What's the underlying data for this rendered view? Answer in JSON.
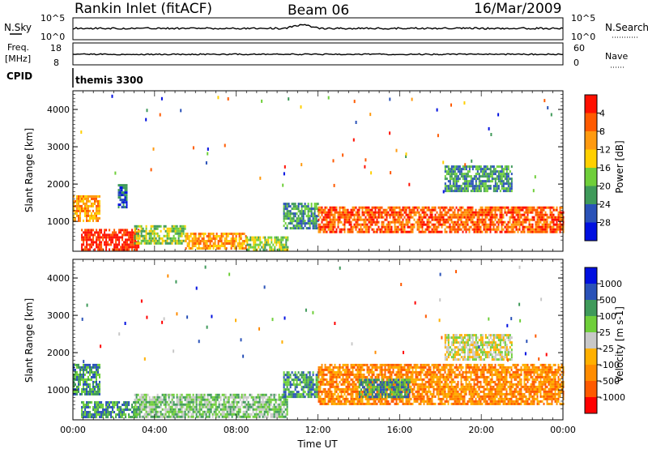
{
  "header": {
    "title": "Rankin Inlet (fitACF)",
    "beam": "Beam 06",
    "date": "16/Mar/2009"
  },
  "nsky_panel": {
    "left_label": "N.Sky",
    "left_ticks": [
      "10^5",
      "10^0"
    ],
    "right_ticks": [
      "10^5",
      "10^0"
    ],
    "right_label": "N.Search"
  },
  "freq_panel": {
    "left_label_1": "Freq.",
    "left_label_2": "[MHz]",
    "left_ticks": [
      "18",
      "8"
    ],
    "right_ticks": [
      "60",
      "0"
    ],
    "right_label": "Nave"
  },
  "cpid_panel": {
    "label": "CPID",
    "value": "themis 3300"
  },
  "colors": {
    "scale": [
      "#0010e0",
      "#2a52b8",
      "#3f9a5a",
      "#6fcf3a",
      "#ffd000",
      "#ff9a10",
      "#ff5a00",
      "#ff1000"
    ],
    "velocity_scale": [
      "#ff0000",
      "#ff5a00",
      "#ff8c00",
      "#ffb000",
      "#c8c8c8",
      "#6fcf3a",
      "#3f9a5a",
      "#2a52b8",
      "#0010e0"
    ],
    "ground_scatter": "#c8c8c8"
  },
  "chart_data": [
    {
      "type": "heatmap",
      "panel": "power",
      "ylabel": "Slant Range [km]",
      "yticks": [
        "1000",
        "2000",
        "3000",
        "4000"
      ],
      "ylim": [
        200,
        4500
      ],
      "xlim": [
        0,
        24
      ],
      "colorbar_label": "Power [dB]",
      "colorbar_ticks": [
        "4",
        "8",
        "12",
        "16",
        "20",
        "24",
        "28"
      ],
      "regions": [
        {
          "x": [
            0,
            1.3
          ],
          "y": [
            1000,
            1700
          ],
          "level": 5
        },
        {
          "x": [
            0.4,
            3.2
          ],
          "y": [
            250,
            800
          ],
          "level": 7
        },
        {
          "x": [
            3.0,
            5.5
          ],
          "y": [
            400,
            900
          ],
          "level": 3
        },
        {
          "x": [
            5.5,
            8.5
          ],
          "y": [
            250,
            700
          ],
          "level": 5
        },
        {
          "x": [
            8.5,
            10.5
          ],
          "y": [
            250,
            600
          ],
          "level": 3
        },
        {
          "x": [
            10.3,
            12.0
          ],
          "y": [
            800,
            1500
          ],
          "level": 2
        },
        {
          "x": [
            12.0,
            24.0
          ],
          "y": [
            700,
            1400
          ],
          "level": 6
        },
        {
          "x": [
            18.2,
            21.5
          ],
          "y": [
            1800,
            2500
          ],
          "level": 2
        },
        {
          "x": [
            2.2,
            2.6
          ],
          "y": [
            1400,
            2000
          ],
          "level": 1
        }
      ]
    },
    {
      "type": "heatmap",
      "panel": "velocity",
      "ylabel": "Slant Range [km]",
      "yticks": [
        "1000",
        "2000",
        "3000",
        "4000"
      ],
      "ylim": [
        200,
        4500
      ],
      "xlim": [
        0,
        24
      ],
      "xticks": [
        "00:00",
        "04:00",
        "08:00",
        "12:00",
        "16:00",
        "20:00",
        "00:00"
      ],
      "xlabel": "Time UT",
      "colorbar_label": "Velocity [m s-1]",
      "colorbar_ticks": [
        "1000",
        "500",
        "100",
        "25",
        "-25",
        "-100",
        "-500",
        "-1000"
      ],
      "regions": [
        {
          "x": [
            0,
            1.3
          ],
          "y": [
            900,
            1700
          ],
          "level": 6
        },
        {
          "x": [
            0.4,
            3.2
          ],
          "y": [
            250,
            700
          ],
          "level": 6
        },
        {
          "x": [
            3.0,
            10.5
          ],
          "y": [
            250,
            900
          ],
          "level": 5
        },
        {
          "x": [
            10.3,
            12.0
          ],
          "y": [
            800,
            1500
          ],
          "level": 6
        },
        {
          "x": [
            12.0,
            24.0
          ],
          "y": [
            600,
            1700
          ],
          "level": 2
        },
        {
          "x": [
            18.2,
            21.5
          ],
          "y": [
            1800,
            2500
          ],
          "level": 4
        },
        {
          "x": [
            14.0,
            16.5
          ],
          "y": [
            800,
            1300
          ],
          "level": 6
        }
      ]
    }
  ]
}
